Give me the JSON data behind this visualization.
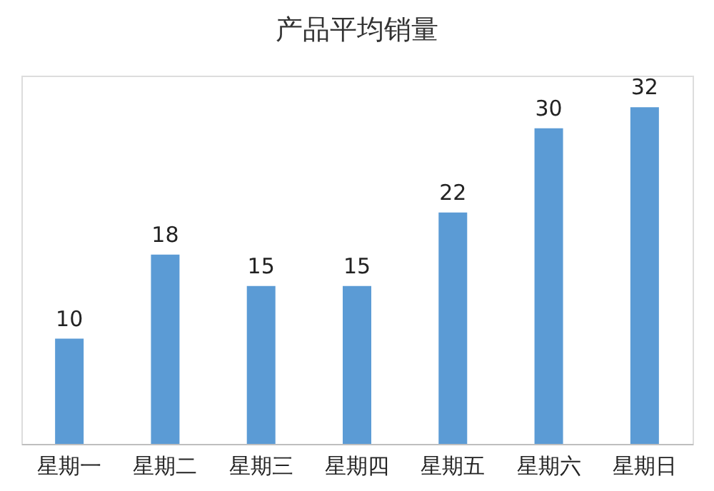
{
  "chart_data": {
    "type": "bar",
    "title": "产品平均销量",
    "categories": [
      "星期一",
      "星期二",
      "星期三",
      "星期四",
      "星期五",
      "星期六",
      "星期日"
    ],
    "values": [
      10,
      18,
      15,
      15,
      22,
      30,
      32
    ],
    "color": "#5b9bd5",
    "data_labels": true,
    "grid": false
  }
}
